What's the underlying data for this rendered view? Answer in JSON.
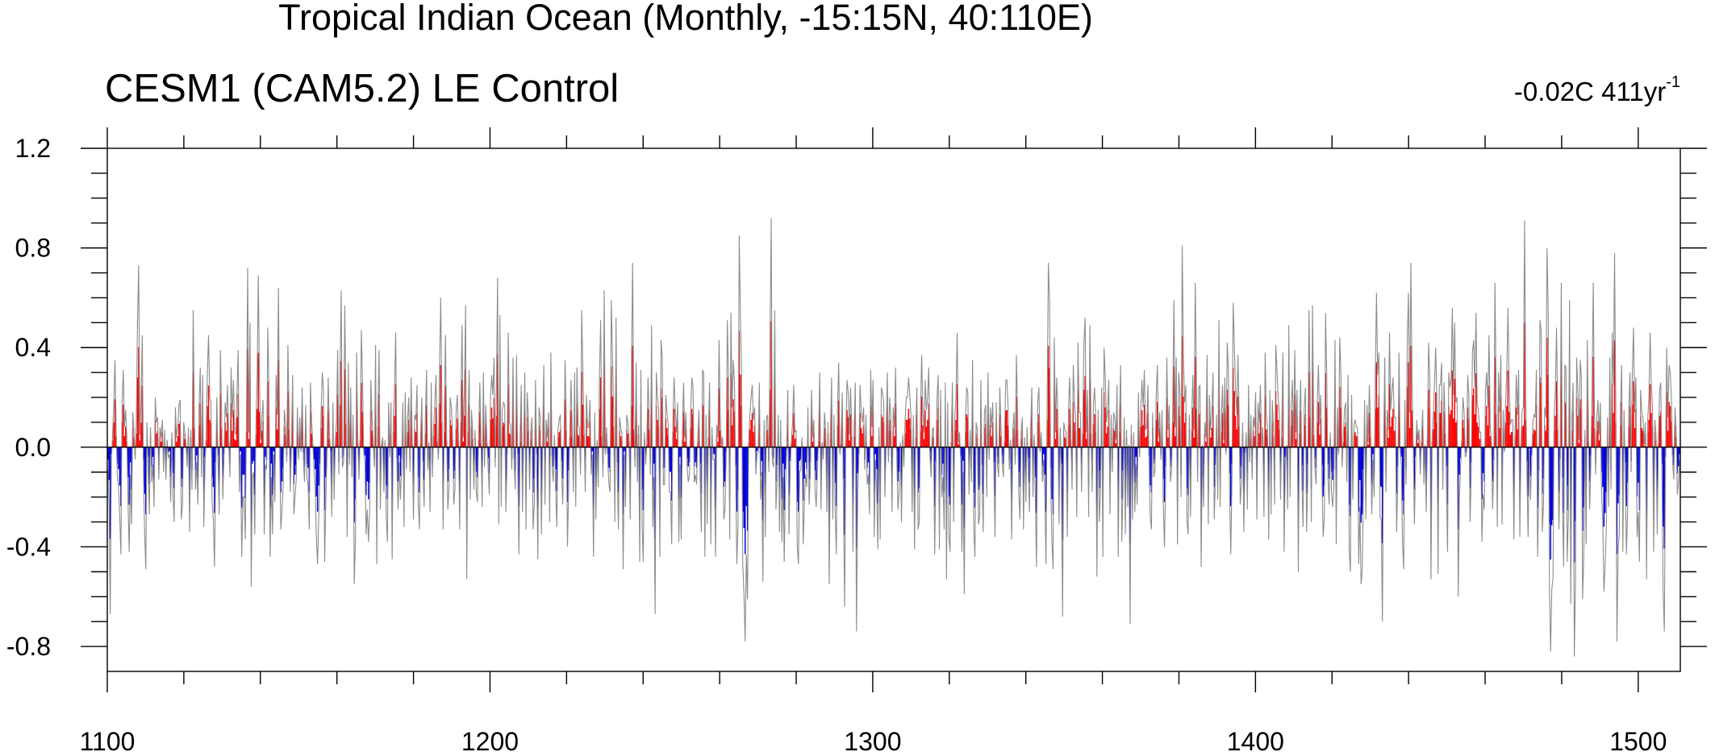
{
  "chart_data": {
    "type": "bar",
    "title": "Tropical Indian Ocean (Monthly, -15:15N, 40:110E)",
    "subtitle": "CESM1 (CAM5.2) LE Control",
    "trend_label": "-0.02C 411yr",
    "trend_exponent": "-1",
    "x_range": [
      1100,
      1511
    ],
    "xlim": [
      1100,
      1511
    ],
    "ylim": [
      -0.9,
      1.2
    ],
    "x_ticks": [
      1100,
      1200,
      1300,
      1400,
      1500
    ],
    "x_tick_labels": [
      "1100",
      "1200",
      "1300",
      "1400",
      "1500"
    ],
    "y_ticks": [
      -0.8,
      -0.4,
      0.0,
      0.4,
      0.8,
      1.2
    ],
    "y_tick_labels": [
      "-0.8",
      "-0.4",
      "0.0",
      "0.4",
      "0.8",
      "1.2"
    ],
    "positive_color": "#ff0000",
    "negative_color": "#0000dd",
    "line_color": "#8c8c8c",
    "sampling": "monthly series approximated at 2-month resolution (extrema preserved)",
    "values": [
      -0.09,
      -0.24,
      -0.67,
      -0.05,
      0.05,
      0.18,
      0.35,
      0.08,
      -0.12,
      -0.16,
      -0.28,
      -0.43,
      0.18,
      0.31,
      0.08,
      0.15,
      0.04,
      -0.22,
      -0.42,
      -0.11,
      -0.31,
      0.14,
      0.07,
      -0.05,
      0.1,
      0.51,
      0.73,
      0.05,
      0.18,
      0.45,
      -0.09,
      -0.34,
      -0.49,
      0.1,
      -0.07,
      -0.27,
      0.08,
      -0.14,
      -0.07,
      -0.24,
      0.2,
      0.1,
      0.12,
      -0.13,
      0.08,
      0.04,
      0.11,
      -0.1,
      0.07,
      -0.13,
      0.03,
      -0.04,
      -0.03,
      -0.22,
      0.06,
      -0.19,
      -0.3,
      0.16,
      0.04,
      0.08,
      0.17,
      0.19,
      -0.29,
      -0.23,
      0.1,
      0.06,
      0.01,
      -0.08,
      0.08,
      -0.34,
      0.07,
      -0.17,
      0.55,
      0.14,
      -0.17,
      -0.06,
      -0.23,
      0.16,
      0.32,
      -0.12,
      0.29,
      -0.32,
      -0.07,
      0.05,
      0.3,
      0.45,
      0.2,
      0.18,
      -0.22,
      -0.29,
      -0.48,
      -0.11,
      0.2,
      -0.06,
      -0.27,
      0.39,
      0.14,
      -0.21,
      -0.05,
      0.18,
      0.12,
      0.25,
      0.03,
      -0.12,
      0.32,
      0.12,
      0.27,
      0.06,
      0.05,
      0.22,
      0.39,
      -0.18,
      -0.03,
      -0.44,
      -0.2,
      -0.2,
      -0.37,
      0.11,
      0.72,
      0.06,
      0.5,
      -0.56,
      -0.12,
      -0.1,
      -0.35,
      0.09,
      0.28,
      0.69,
      0.26,
      0.03,
      0.12,
      0.19,
      -0.35,
      -0.07,
      -0.09,
      0.48,
      0.23,
      -0.44,
      -0.12,
      -0.35,
      -0.03,
      -0.22,
      0.29,
      0.13,
      0.64,
      0.02,
      -0.33,
      -0.25,
      -0.15,
      0.15,
      0.09,
      -0.06,
      0.41,
      0.13,
      -0.18,
      0.02,
      0.29,
      -0.27,
      -0.2,
      -0.13,
      0.16,
      -0.05,
      0.12,
      -0.02,
      0.24,
      -0.04,
      -0.14,
      0.17,
      -0.12,
      -0.15,
      -0.33,
      0.26,
      0.1,
      0.02,
      -0.09,
      -0.16,
      -0.36,
      -0.47,
      -0.28,
      -0.12,
      0.14,
      0.3,
      0.23,
      -0.46,
      -0.22,
      -0.02,
      0.28,
      0.06,
      -0.03,
      -0.28,
      0.18,
      -0.21,
      0.02,
      0.11,
      0.39,
      -0.11,
      0.31,
      0.63,
      -0.08,
      -0.06,
      0.57,
      0.17,
      -0.36,
      0.34,
      -0.07,
      0.24,
      -0.12,
      0.13,
      -0.55,
      -0.38,
      0.38,
      0.03,
      -0.13,
      0.05,
      0.47,
      0.26,
      -0.02,
      -0.06,
      -0.35,
      -0.25,
      -0.38,
      -0.26,
      0.27,
      0.12,
      0.02,
      -0.08,
      0.41,
      -0.47,
      0.15,
      0.39,
      -0.25,
      0.01,
      0.04,
      -0.18,
      0.03,
      -0.28,
      -0.38,
      0.18,
      -0.04,
      0.18,
      -0.45,
      0.11,
      0.23,
      0.46,
      -0.08,
      -0.25,
      -0.06,
      -0.21,
      -0.08,
      0.18,
      -0.32,
      0.22,
      -0.09,
      0.11,
      0.2,
      -0.1,
      0.28,
      0.02,
      -0.29,
      0.13,
      0.11,
      0.25,
      -0.22,
      -0.33,
      0.03,
      0.2,
      -0.1,
      -0.24,
      0.1,
      0.31,
      -0.09,
      0.02,
      -0.26,
      0.26,
      -0.12,
      0.08,
      0.17,
      0.29,
      0.04,
      -0.05,
      0.32,
      0.6,
      0.18,
      -0.33,
      0.11,
      0.45,
      0.05,
      -0.25,
      -0.16,
      0.2,
      0.16,
      0.05,
      -0.23,
      -0.17,
      0.14,
      0.21,
      0.05,
      -0.33,
      0.18,
      0.49,
      0.04,
      0.23,
      0.57,
      -0.53,
      0.11,
      0.31,
      -0.21,
      0.15,
      0.06,
      -0.17,
      0.07,
      -0.18,
      -0.22,
      0.05,
      0.26,
      0.03,
      -0.24,
      0.3,
      -0.08,
      0.17,
      0.03,
      -0.08,
      -0.19,
      0.2,
      0.29,
      0.21,
      0.36,
      -0.08,
      0.23,
      0.68,
      -0.31,
      0.53,
      -0.24,
      0.15,
      0.18,
      0.17,
      -0.26,
      -0.05,
      0.46,
      0.1,
      0.09,
      -0.09,
      0.36,
      -0.08,
      -0.17,
      0.37,
      -0.05,
      -0.43,
      0.04,
      0.25,
      -0.26,
      0.02,
      0.3,
      -0.33,
      0.22,
      0.12,
      -0.17,
      0.06,
      0.12,
      -0.33,
      -0.23,
      0.27,
      -0.05,
      -0.45,
      0.16,
      0.12,
      -0.35,
      0.01,
      0.33,
      -0.23,
      0.11,
      0.04,
      0.14,
      -0.3,
      0.38,
      -0.07,
      -0.14,
      0.05,
      -0.16,
      -0.32,
      0.07,
      0.11,
      0.13,
      -0.1,
      -0.23,
      0.01,
      0.35,
      0.12,
      -0.4,
      -0.17,
      0.07,
      0.27,
      0.08,
      -0.18,
      0.3,
      -0.24,
      0.32,
      0.09,
      0.08,
      -0.11,
      0.55,
      0.31,
      0.09,
      -0.18,
      0.21,
      0.08,
      0.08,
      0.19,
      -0.11,
      -0.03,
      -0.44,
      0.14,
      -0.29,
      0.03,
      -0.16,
      0.28,
      0.51,
      0.08,
      -0.12,
      0.63,
      -0.03,
      0.08,
      -0.05,
      -0.15,
      -0.18,
      0.59,
      0.37,
      0.15,
      -0.3,
      0.52,
      -0.11,
      -0.33,
      0.12,
      0.08,
      0.05,
      -0.49,
      -0.03,
      -0.24,
      0.13,
      0.1,
      0.04,
      -0.29,
      0.3,
      0.74,
      0.13,
      -0.08,
      0.34,
      -0.14,
      0.09,
      -0.46,
      0.31,
      -0.31,
      -0.46,
      0.06,
      -0.07,
      0.02,
      0.28,
      0.13,
      -0.11,
      0.49,
      -0.32,
      -0.12,
      -0.67,
      0.3,
      0.2,
      0.15,
      -0.44,
      0.43,
      0.36,
      -0.15,
      -0.15,
      0.21,
      0.14,
      0.09,
      -0.18,
      -0.18,
      -0.39,
      0.11,
      0.28,
      0.15,
      0.06,
      0.18,
      -0.38,
      -0.07,
      -0.37,
      0.05,
      0.26,
      0.04,
      0.14,
      -0.08,
      -0.14,
      -0.11,
      0.14,
      0.28,
      0.24,
      -0.14,
      -0.11,
      -0.15,
      0.04,
      0.15,
      -0.12,
      -0.34,
      0.31,
      0.3,
      -0.44,
      0.13,
      -0.31,
      0.07,
      0.26,
      -0.39,
      0.08,
      -0.05,
      -0.05,
      -0.44,
      0.09,
      0.04,
      0.43,
      0.12,
      0.01,
      0.04,
      -0.29,
      -0.25,
      -0.03,
      0.51,
      0.27,
      -0.37,
      0.54,
      0.16,
      0.35,
      0.26,
      -0.13,
      -0.47,
      -0.31,
      0.85,
      0.53,
      0.3,
      -0.47,
      -0.59,
      -0.78,
      -0.43,
      -0.61,
      0.03,
      0.13,
      0.2,
      0.25,
      0.11,
      0.16,
      -0.11,
      -0.03,
      -0.02,
      0.26,
      -0.21,
      -0.1,
      -0.54,
      0.11,
      -0.36,
      0.12,
      0.13,
      -0.1,
      0.42,
      0.92,
      -0.06,
      -0.08,
      0.55,
      -0.25,
      -0.13,
      0.13,
      -0.34,
      0.11,
      -0.38,
      -0.12,
      -0.46,
      -0.16,
      -0.02,
      0.23,
      -0.35,
      -0.1,
      0.03,
      0.09,
      0.25,
      0.06,
      0.07,
      -0.4,
      -0.47,
      -0.1,
      -0.09,
      0.04,
      -0.39,
      -0.23,
      -0.11,
      -0.16,
      0.16,
      -0.23,
      -0.11,
      0.23,
      0.04,
      0.11,
      -0.17,
      -0.24,
      -0.1,
      0.04,
      0.3,
      -0.25,
      0.02,
      -0.05,
      0.14,
      0.06,
      -0.26,
      0.1,
      -0.55,
      0.06,
      0.28,
      -0.29,
      0.13,
      -0.26,
      -0.43,
      0.16,
      0.34,
      -0.03,
      0.02,
      0.22,
      -0.23,
      -0.64,
      0.05,
      0.27,
      0.22,
      0.05,
      0.24,
      0.08,
      -0.42,
      0.08,
      0.26,
      -0.74,
      -0.19,
      -0.05,
      0.25,
      0.14,
      0.1,
      0.16,
      -0.09,
      0.13,
      -0.15,
      -0.11,
      -0.27,
      0.31,
      0.08,
      0.27,
      -0.36,
      -0.05,
      -0.16,
      -0.41,
      0.08,
      -0.37,
      0.24,
      0.22,
      0.18,
      -0.2,
      0.02,
      0.3,
      -0.06,
      0.2,
      0.12,
      -0.26,
      0.16,
      0.08,
      0.32,
      -0.03,
      -0.25,
      -0.18,
      0.02,
      -0.3,
      0.05,
      -0.08,
      0.1,
      0.2,
      0.2,
      0.28,
      0.21,
      0.13,
      -0.26,
      0.13,
      -0.41,
      0.07,
      0.24,
      -0.33,
      -0.3,
      0.12,
      0.37,
      0.16,
      0.06,
      0.27,
      0.15,
      0.2,
      0.32,
      -0.03,
      -0.12,
      0.07,
      0.08,
      -0.43,
      -0.1,
      0.2,
      0.29,
      -0.41,
      0.23,
      -0.2,
      -0.12,
      -0.33,
      0.26,
      -0.53,
      0.18,
      -0.36,
      -0.42,
      0.04,
      0.26,
      -0.3,
      0.12,
      0.2,
      0.46,
      0.02,
      0.06,
      -0.06,
      -0.42,
      -0.1,
      -0.59,
      0.11,
      0.24,
      0.22,
      -0.19,
      0.07,
      -0.14,
      0.35,
      -0.33,
      -0.44,
      0.1,
      0.07,
      -0.31,
      -0.28,
      0.27,
      -0.13,
      -0.34,
      0.14,
      0.17,
      -0.2,
      0.3,
      -0.05,
      0.16,
      0.08,
      0.18,
      -0.11,
      -0.36,
      0.18,
      -0.07,
      -0.12,
      0.24,
      0.08,
      -0.06,
      -0.12,
      0.04,
      0.27,
      0.27,
      0.16,
      -0.09,
      0.03,
      -0.37,
      0.07,
      0.14,
      -0.07,
      0.37,
      0.13,
      -0.18,
      -0.29,
      0.06,
      0.12,
      -0.33,
      0.04,
      -0.22,
      0.08,
      -0.08,
      -0.26,
      0.06,
      0.24,
      -0.2,
      0.05,
      -0.22,
      -0.48,
      0.18,
      0.24,
      -0.02,
      0.06,
      -0.14,
      -0.05,
      -0.2,
      -0.47,
      0.2,
      0.74,
      0.58,
      -0.15,
      -0.38,
      -0.49,
      0.44,
      0.06,
      0.28,
      0.13,
      -0.31,
      0.08,
      -0.12,
      -0.68,
      0.1,
      0.07,
      0.06,
      -0.36,
      0.16,
      0.28,
      0.05,
      -0.17,
      0.33,
      0.18,
      0.12,
      -0.28,
      0.42,
      0.14,
      0.14,
      -0.18,
      0.1,
      0.42,
      0.52,
      0.06,
      0.23,
      -0.28,
      0.49,
      0.1,
      -0.18,
      0.17,
      0.24,
      0.11,
      -0.52,
      0.15,
      -0.3,
      -0.17,
      0.24,
      -0.44,
      0.4,
      0.29,
      0.1,
      0.15,
      0.27,
      -0.27,
      0.13,
      -0.1,
      0.14,
      0.12,
      0.03,
      0.25,
      -0.44,
      0.11,
      0.33,
      -0.38,
      -0.17,
      0.12,
      -0.35,
      0.07,
      -0.24,
      0.01,
      -0.71,
      0.09,
      -0.29,
      0.06,
      -0.26,
      -0.07,
      -0.23,
      0.22,
      -0.04,
      0.15,
      0.27,
      0.16,
      0.31,
      0.07,
      0.08,
      0.25,
      -0.06,
      -0.28,
      -0.33,
      0.14,
      -0.12,
      -0.09,
      0.2,
      0.33,
      0.04,
      0.14,
      -0.05,
      0.15,
      -0.23,
      -0.4,
      -0.14,
      0.36,
      0.07,
      0.17,
      -0.14,
      -0.09,
      0.18,
      0.59,
      0.08,
      0.36,
      -0.39,
      0.3,
      0.23,
      -0.2,
      0.81,
      0.37,
      0.18,
      0.25,
      -0.3,
      -0.35,
      0.13,
      -0.28,
      0.12,
      0.29,
      0.07,
      0.66,
      0.28,
      -0.14,
      0.24,
      0.25,
      -0.48,
      0.01,
      -0.24,
      0.1,
      0.04,
      0.37,
      -0.31,
      0.21,
      0.07,
      0.14,
      0.3,
      -0.29,
      -0.13,
      0.13,
      -0.21,
      0.51,
      -0.24,
      0.11,
      0.25,
      0.03,
      0.28,
      -0.03,
      0.42,
      0.31,
      -0.19,
      -0.43,
      -0.12,
      0.58,
      0.41,
      0.23,
      0.13,
      0.37,
      0.15,
      -0.23,
      -0.14,
      0.1,
      -0.34,
      -0.04,
      0.06,
      -0.25,
      0.25,
      -0.06,
      0.13,
      -0.13,
      0.12,
      0.08,
      0.22,
      -0.29,
      0.18,
      0.1,
      0.25,
      0.01,
      0.08,
      -0.28,
      0.38,
      0.13,
      0.08,
      -0.37,
      0.23,
      -0.27,
      0.19,
      0.08,
      -0.23,
      0.41,
      0.31,
      0.2,
      0.13,
      -0.21,
      0.07,
      0.38,
      -0.42,
      -0.07,
      0.01,
      -0.25,
      0.49,
      -0.2,
      0.16,
      0.27,
      0.01,
      0.39,
      0.06,
      0.23,
      -0.5,
      0.1,
      0.27,
      -0.13,
      -0.32,
      0.16,
      0.24,
      -0.34,
      -0.12,
      0.55,
      0.22,
      -0.3,
      0.57,
      0.09,
      -0.08,
      -0.15,
      0.18,
      0.33,
      0.09,
      0.21,
      -0.13,
      -0.36,
      -0.28,
      0.54,
      0.29,
      -0.12,
      -0.23,
      0.06,
      -0.18,
      -0.24,
      -0.16,
      0.43,
      -0.39,
      0.16,
      -0.03,
      0.44,
      0.29,
      -0.08,
      0.04,
      0.15,
      0.18,
      -0.14,
      0.29,
      -0.42,
      -0.5,
      0.21,
      -0.21,
      0.09,
      0.11,
      0.08,
      0.08,
      -0.47,
      -0.24,
      -0.55,
      -0.49,
      -0.16,
      0.19,
      -0.29,
      0.17,
      0.02,
      0.25,
      0.07,
      -0.27,
      -0.05,
      -0.2,
      0.28,
      0.62,
      0.29,
      0.38,
      -0.28,
      -0.29,
      -0.7,
      0.01,
      0.36,
      -0.18,
      0.15,
      0.07,
      0.46,
      0.15,
      0.22,
      0.28,
      0.12,
      0.12,
      -0.34,
      -0.14,
      0.38,
      -0.01,
      -0.07,
      -0.39,
      -0.49,
      0.19,
      -0.15,
      0.44,
      0.62,
      0.14,
      0.74,
      0.27,
      0.02,
      -0.31,
      -0.07,
      0.11,
      0.03,
      0.07,
      -0.11,
      0.04,
      0.15,
      -0.15,
      0.01,
      -0.26,
      0.06,
      0.42,
      0.28,
      -0.53,
      0.04,
      0.13,
      0.26,
      0.4,
      0.18,
      -0.51,
      0.25,
      0.25,
      0.34,
      -0.17,
      0.26,
      0.1,
      -0.14,
      -0.42,
      0.3,
      0.24,
      0.27,
      0.56,
      0.21,
      0.5,
      0.18,
      0.2,
      -0.6,
      -0.2,
      -0.08,
      0.04,
      0.2,
      0.14,
      -0.04,
      -0.03,
      0.29,
      0.21,
      -0.3,
      -0.11,
      0.38,
      0.43,
      0.24,
      0.54,
      0.18,
      0.15,
      0.06,
      0.06,
      -0.38,
      -0.19,
      -0.25,
      0.23,
      0.3,
      0.16,
      0.45,
      0.08,
      0.04,
      -0.25,
      -0.09,
      0.66,
      0.24,
      -0.32,
      0.3,
      0.14,
      0.37,
      -0.31,
      0.15,
      -0.02,
      0.18,
      0.3,
      0.56,
      0.26,
      0.09,
      0.11,
      0.11,
      -0.37,
      0.08,
      0.29,
      0.13,
      0.31,
      -0.36,
      0.02,
      0.15,
      0.16,
      0.91,
      0.2,
      -0.1,
      -0.36,
      -0.01,
      -0.21,
      -0.06,
      0.1,
      0.13,
      0.12,
      0.31,
      -0.44,
      -0.17,
      0.51,
      0.47,
      -0.34,
      -0.23,
      0.16,
      0.12,
      0.8,
      0.53,
      -0.56,
      -0.82,
      -0.57,
      -0.53,
      0.12,
      0.23,
      0.48,
      0.13,
      -0.33,
      -0.08,
      0.66,
      -0.22,
      -0.48,
      0.33,
      0.32,
      -0.46,
      -0.28,
      0.59,
      -0.63,
      0.12,
      0.26,
      -0.84,
      -0.54,
      0.36,
      0.23,
      0.03,
      0.35,
      0.28,
      -0.61,
      -0.44,
      0.07,
      -0.39,
      0.43,
      0.04,
      -0.25,
      -0.06,
      0.23,
      0.66,
      0.14,
      -0.11,
      0.12,
      0.19,
      0.05,
      0.18,
      -0.18,
      -0.29,
      -0.58,
      -0.48,
      -0.33,
      0.12,
      -0.24,
      0.36,
      -0.17,
      0.46,
      0.25,
      0.78,
      0.18,
      -0.78,
      -0.41,
      -0.35,
      0.16,
      0.33,
      -0.42,
      0.15,
      -0.11,
      -0.43,
      -0.26,
      0.15,
      0.3,
      -0.1,
      0.31,
      0.48,
      0.14,
      0.28,
      -0.36,
      -0.26,
      -0.46,
      0.23,
      0.14,
      0.12,
      0.01,
      0.1,
      -0.53,
      0.11,
      0.2,
      0.46,
      0.25,
      0.16,
      -0.42,
      0.11,
      0.05,
      -0.35,
      0.03,
      0.23,
      0.26,
      -0.12,
      -0.58,
      -0.74,
      -0.07,
      0.4,
      0.12,
      0.33,
      0.3,
      0.19,
      -0.06,
      -0.13,
      0.16,
      0.07,
      -0.19,
      -0.14,
      -0.05
    ]
  }
}
